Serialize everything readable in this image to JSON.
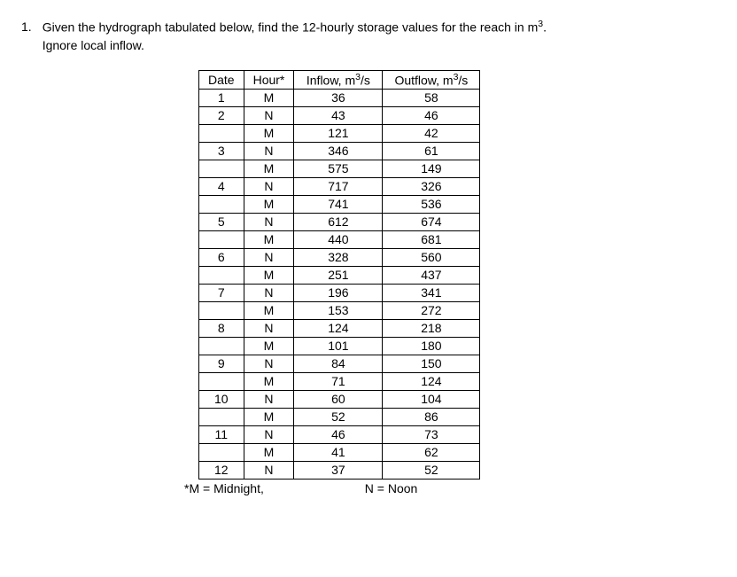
{
  "question": {
    "number": "1.",
    "text_line1": "Given the hydrograph tabulated below, find the 12-hourly storage values for the reach in m",
    "super": "3",
    "text_line1_end": ".",
    "text_line2": "Ignore local inflow."
  },
  "table": {
    "headers": {
      "date": "Date",
      "hour": "Hour*",
      "inflow_pre": "Inflow, m",
      "inflow_sup": "3",
      "inflow_post": "/s",
      "outflow_pre": "Outflow, m",
      "outflow_sup": "3",
      "outflow_post": "/s"
    },
    "rows": [
      {
        "date": "1",
        "hour": "M",
        "inflow": "36",
        "outflow": "58"
      },
      {
        "date": "2",
        "hour": "N",
        "inflow": "43",
        "outflow": "46"
      },
      {
        "date": "",
        "hour": "M",
        "inflow": "121",
        "outflow": "42"
      },
      {
        "date": "3",
        "hour": "N",
        "inflow": "346",
        "outflow": "61"
      },
      {
        "date": "",
        "hour": "M",
        "inflow": "575",
        "outflow": "149"
      },
      {
        "date": "4",
        "hour": "N",
        "inflow": "717",
        "outflow": "326"
      },
      {
        "date": "",
        "hour": "M",
        "inflow": "741",
        "outflow": "536"
      },
      {
        "date": "5",
        "hour": "N",
        "inflow": "612",
        "outflow": "674"
      },
      {
        "date": "",
        "hour": "M",
        "inflow": "440",
        "outflow": "681"
      },
      {
        "date": "6",
        "hour": "N",
        "inflow": "328",
        "outflow": "560"
      },
      {
        "date": "",
        "hour": "M",
        "inflow": "251",
        "outflow": "437"
      },
      {
        "date": "7",
        "hour": "N",
        "inflow": "196",
        "outflow": "341"
      },
      {
        "date": "",
        "hour": "M",
        "inflow": "153",
        "outflow": "272"
      },
      {
        "date": "8",
        "hour": "N",
        "inflow": "124",
        "outflow": "218"
      },
      {
        "date": "",
        "hour": "M",
        "inflow": "101",
        "outflow": "180"
      },
      {
        "date": "9",
        "hour": "N",
        "inflow": "84",
        "outflow": "150"
      },
      {
        "date": "",
        "hour": "M",
        "inflow": "71",
        "outflow": "124"
      },
      {
        "date": "10",
        "hour": "N",
        "inflow": "60",
        "outflow": "104"
      },
      {
        "date": "",
        "hour": "M",
        "inflow": "52",
        "outflow": "86"
      },
      {
        "date": "11",
        "hour": "N",
        "inflow": "46",
        "outflow": "73"
      },
      {
        "date": "",
        "hour": "M",
        "inflow": "41",
        "outflow": "62"
      },
      {
        "date": "12",
        "hour": "N",
        "inflow": "37",
        "outflow": "52"
      }
    ]
  },
  "footnote": {
    "midnight": "*M = Midnight,",
    "noon": "N = Noon"
  }
}
